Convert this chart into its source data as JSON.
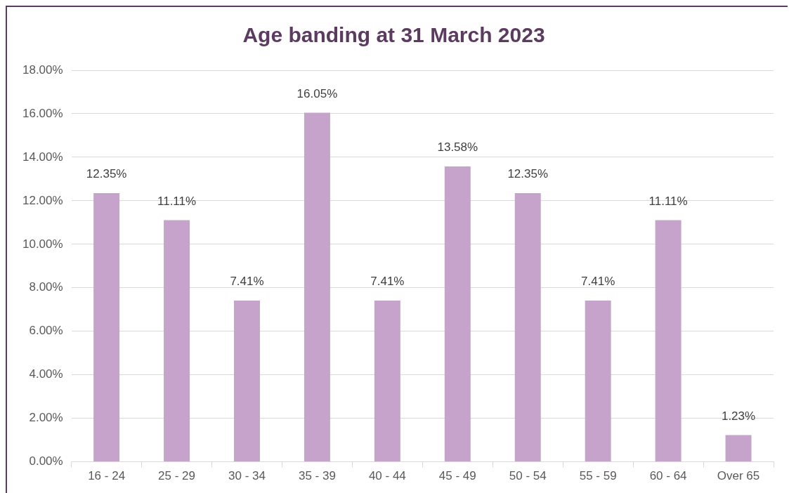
{
  "chart_data": {
    "type": "bar",
    "title": "Age banding at 31 March 2023",
    "categories": [
      "16 - 24",
      "25 - 29",
      "30 - 34",
      "35 - 39",
      "40 - 44",
      "45 - 49",
      "50 - 54",
      "55 - 59",
      "60 - 64",
      "Over 65"
    ],
    "values": [
      12.35,
      11.11,
      7.41,
      16.05,
      7.41,
      13.58,
      12.35,
      7.41,
      11.11,
      1.23
    ],
    "value_labels": [
      "12.35%",
      "11.11%",
      "7.41%",
      "16.05%",
      "7.41%",
      "13.58%",
      "12.35%",
      "7.41%",
      "11.11%",
      "1.23%"
    ],
    "color": "#c5a3cb",
    "ylim": [
      0,
      18
    ],
    "yticks": [
      {
        "value": 0,
        "label": "0.00%"
      },
      {
        "value": 2,
        "label": "2.00%"
      },
      {
        "value": 4,
        "label": "4.00%"
      },
      {
        "value": 6,
        "label": "6.00%"
      },
      {
        "value": 8,
        "label": "8.00%"
      },
      {
        "value": 10,
        "label": "10.00%"
      },
      {
        "value": 12,
        "label": "12.00%"
      },
      {
        "value": 14,
        "label": "14.00%"
      },
      {
        "value": 16,
        "label": "16.00%"
      },
      {
        "value": 18,
        "label": "18.00%"
      }
    ],
    "grid": "y",
    "legend": false
  }
}
